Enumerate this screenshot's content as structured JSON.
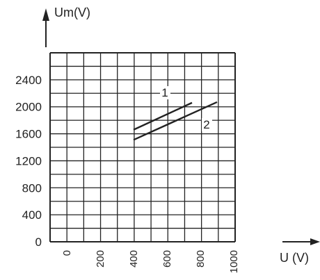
{
  "chart_data": {
    "type": "line",
    "title": "",
    "ylabel": "Um(V)",
    "xlabel": "U (V)",
    "xlim": [
      0,
      1000
    ],
    "ylim": [
      0,
      2800
    ],
    "grid": true,
    "x_ticks": [
      "0",
      "200",
      "400",
      "600",
      "800",
      "1000"
    ],
    "y_ticks": [
      "0",
      "400",
      "800",
      "1200",
      "1600",
      "2000",
      "2400"
    ],
    "series": [
      {
        "name": "1",
        "x": [
          400,
          750
        ],
        "y": [
          1660,
          2060
        ]
      },
      {
        "name": "2",
        "x": [
          400,
          900
        ],
        "y": [
          1510,
          2070
        ]
      }
    ]
  },
  "colors": {
    "line": "#222222",
    "grid": "#222222",
    "background": "#ffffff"
  }
}
